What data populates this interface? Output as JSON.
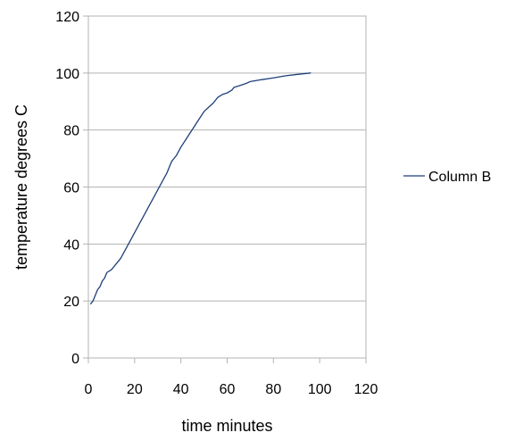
{
  "chart_data": {
    "type": "line",
    "xlabel": "time minutes",
    "ylabel": "temperature degrees C",
    "xlim": [
      0,
      120
    ],
    "ylim": [
      0,
      120
    ],
    "xticks": [
      0,
      20,
      40,
      60,
      80,
      100,
      120
    ],
    "yticks": [
      0,
      20,
      40,
      60,
      80,
      100,
      120
    ],
    "grid": "horizontal",
    "legend_position": "right",
    "series": [
      {
        "name": "Column B",
        "color": "#1f3f7a",
        "points": [
          [
            1,
            19
          ],
          [
            2,
            20
          ],
          [
            3,
            22
          ],
          [
            4,
            24
          ],
          [
            5,
            25
          ],
          [
            6,
            27
          ],
          [
            7,
            28
          ],
          [
            8,
            30
          ],
          [
            10,
            31
          ],
          [
            12,
            33
          ],
          [
            14,
            35
          ],
          [
            16,
            38
          ],
          [
            18,
            41
          ],
          [
            20,
            44
          ],
          [
            22,
            47
          ],
          [
            24,
            50
          ],
          [
            26,
            53
          ],
          [
            28,
            56
          ],
          [
            30,
            59
          ],
          [
            32,
            62
          ],
          [
            34,
            65
          ],
          [
            36,
            69
          ],
          [
            38,
            71
          ],
          [
            40,
            74
          ],
          [
            42,
            76.5
          ],
          [
            44,
            79
          ],
          [
            46,
            81.5
          ],
          [
            48,
            84
          ],
          [
            50,
            86.5
          ],
          [
            52,
            88
          ],
          [
            54,
            89.5
          ],
          [
            56,
            91.5
          ],
          [
            58,
            92.5
          ],
          [
            60,
            93
          ],
          [
            62,
            94
          ],
          [
            63,
            95
          ],
          [
            65,
            95.5
          ],
          [
            68,
            96.3
          ],
          [
            70,
            97
          ],
          [
            75,
            97.7
          ],
          [
            80,
            98.3
          ],
          [
            85,
            99
          ],
          [
            90,
            99.5
          ],
          [
            96,
            100
          ]
        ]
      }
    ]
  }
}
